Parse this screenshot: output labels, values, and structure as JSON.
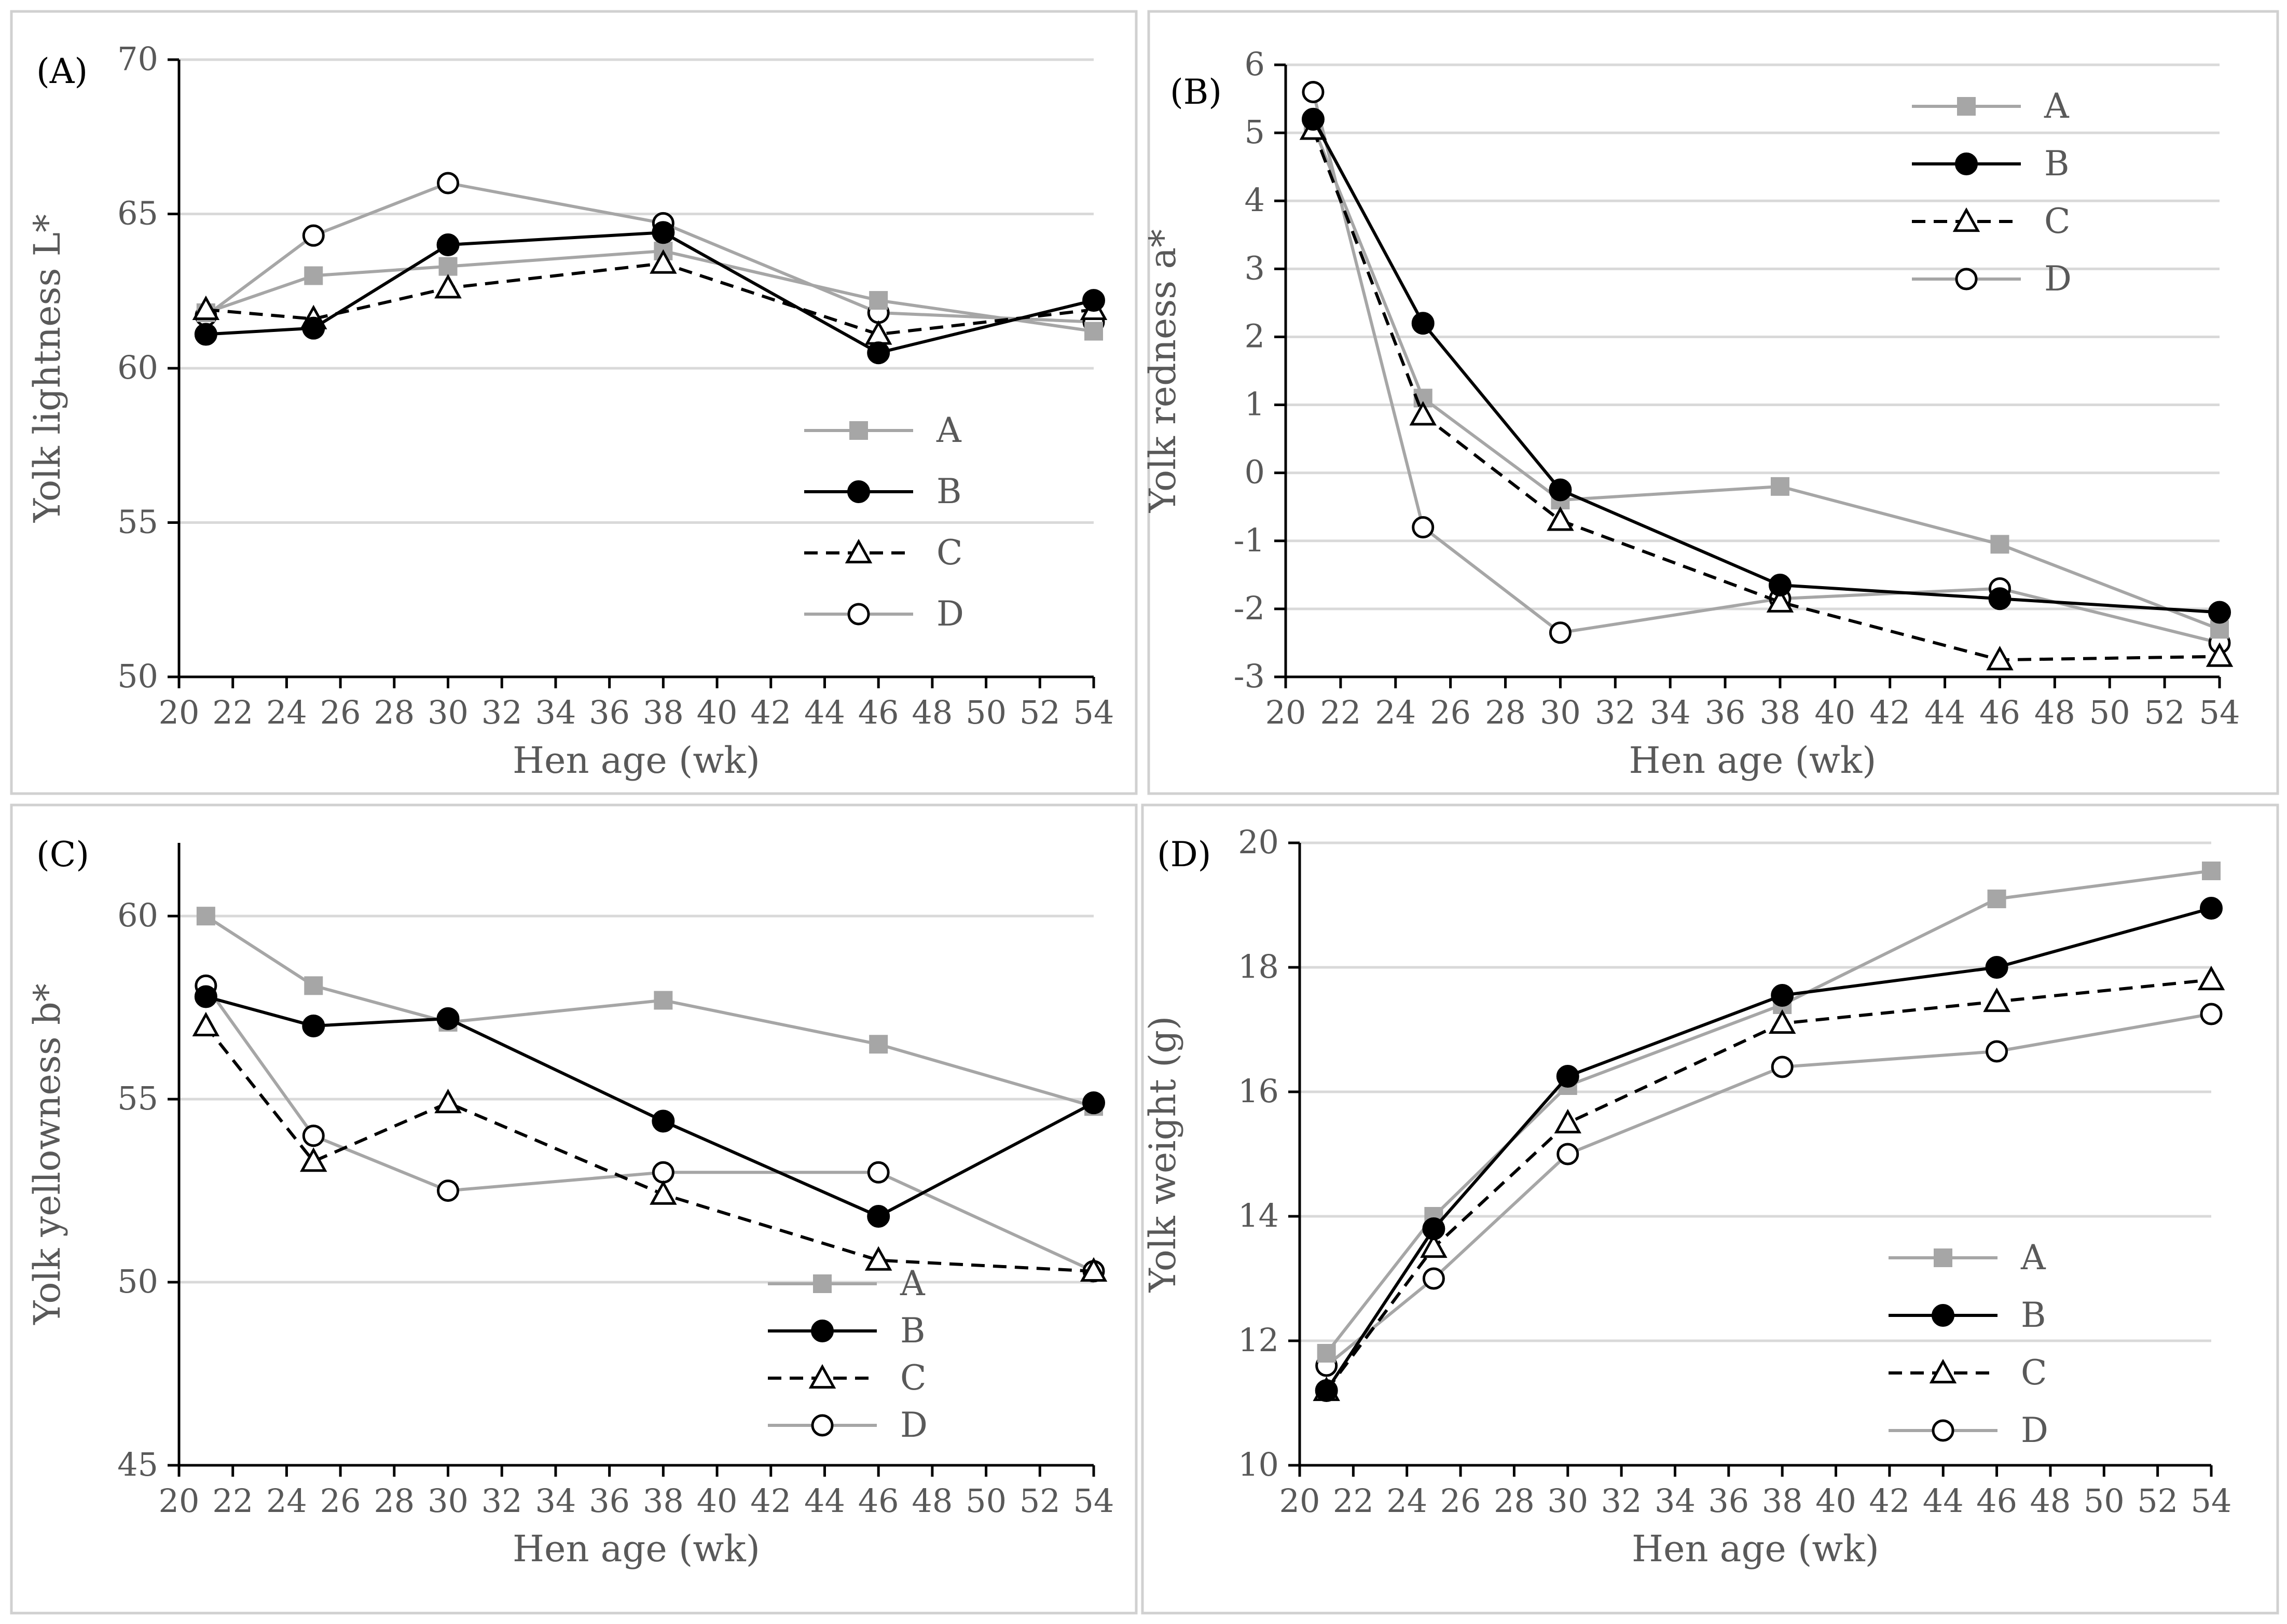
{
  "styles": {
    "A": {
      "color": "#a6a6a6",
      "marker": "square",
      "dash": "none"
    },
    "B": {
      "color": "#000000",
      "marker": "filled-circle",
      "dash": "none"
    },
    "C": {
      "color": "#000000",
      "marker": "open-triangle",
      "dash": "dashed"
    },
    "D": {
      "color": "#a6a6a6",
      "marker": "open-circle",
      "dash": "none"
    },
    "grid_color": "#d9d9d9",
    "axis_color": "#000000",
    "text_color": "#595959",
    "panel_border_color": "#d0d0d0"
  },
  "chart_data": [
    {
      "panel": "(A)",
      "type": "line",
      "ylabel": "Yolk lightness L*",
      "xlabel": "Hen age (wk)",
      "xlim": [
        20,
        54
      ],
      "ylim": [
        50,
        70
      ],
      "xticks": [
        20,
        22,
        24,
        26,
        28,
        30,
        32,
        34,
        36,
        38,
        40,
        42,
        44,
        46,
        48,
        50,
        52,
        54
      ],
      "yticks": [
        50,
        55,
        60,
        65,
        70
      ],
      "legend_position": "lower-right",
      "x": [
        21,
        25,
        30,
        38,
        46,
        54
      ],
      "series": [
        {
          "name": "A",
          "values": [
            61.8,
            63.0,
            63.3,
            63.8,
            62.2,
            61.2
          ]
        },
        {
          "name": "B",
          "values": [
            61.1,
            61.3,
            64.0,
            64.4,
            60.5,
            62.2
          ]
        },
        {
          "name": "C",
          "values": [
            61.9,
            61.6,
            62.6,
            63.4,
            61.1,
            61.9
          ]
        },
        {
          "name": "D",
          "values": [
            61.7,
            64.3,
            66.0,
            64.7,
            61.8,
            61.5
          ]
        }
      ]
    },
    {
      "panel": "(B)",
      "type": "line",
      "ylabel": "Yolk redness a*",
      "xlabel": "Hen age (wk)",
      "xlim": [
        20,
        54
      ],
      "ylim": [
        -3,
        6
      ],
      "xticks": [
        20,
        22,
        24,
        26,
        28,
        30,
        32,
        34,
        36,
        38,
        40,
        42,
        44,
        46,
        48,
        50,
        52,
        54
      ],
      "yticks": [
        -3,
        -2,
        -1,
        0,
        1,
        2,
        3,
        4,
        5,
        6
      ],
      "legend_position": "top-right",
      "x": [
        21,
        25,
        30,
        38,
        46,
        54
      ],
      "series": [
        {
          "name": "A",
          "values": [
            5.1,
            1.1,
            -0.4,
            -0.2,
            -1.05,
            -2.3
          ]
        },
        {
          "name": "B",
          "values": [
            5.2,
            2.2,
            -0.25,
            -1.65,
            -1.85,
            -2.05
          ]
        },
        {
          "name": "C",
          "values": [
            5.05,
            0.85,
            -0.7,
            -1.9,
            -2.75,
            -2.7
          ]
        },
        {
          "name": "D",
          "values": [
            5.6,
            -0.8,
            -2.35,
            -1.85,
            -1.7,
            -2.5
          ]
        }
      ]
    },
    {
      "panel": "(C)",
      "type": "line",
      "ylabel": "Yolk yellowness b*",
      "xlabel": "Hen age (wk)",
      "xlim": [
        20,
        54
      ],
      "ylim": [
        45,
        62
      ],
      "xticks": [
        20,
        22,
        24,
        26,
        28,
        30,
        32,
        34,
        36,
        38,
        40,
        42,
        44,
        46,
        48,
        50,
        52,
        54
      ],
      "yticks": [
        45,
        50,
        55,
        60
      ],
      "legend_position": "lower-right",
      "x": [
        21,
        25,
        30,
        38,
        46,
        54
      ],
      "series": [
        {
          "name": "A",
          "values": [
            60.0,
            58.1,
            57.1,
            57.7,
            56.5,
            54.8
          ]
        },
        {
          "name": "B",
          "values": [
            57.8,
            57.0,
            57.2,
            54.4,
            51.8,
            54.9
          ]
        },
        {
          "name": "C",
          "values": [
            57.0,
            53.3,
            54.9,
            52.4,
            50.6,
            50.3
          ]
        },
        {
          "name": "D",
          "values": [
            58.1,
            54.0,
            52.5,
            53.0,
            53.0,
            50.3
          ]
        }
      ]
    },
    {
      "panel": "(D)",
      "type": "line",
      "ylabel": "Yolk weight (g)",
      "xlabel": "Hen age (wk)",
      "xlim": [
        20,
        54
      ],
      "ylim": [
        10,
        20
      ],
      "xticks": [
        20,
        22,
        24,
        26,
        28,
        30,
        32,
        34,
        36,
        38,
        40,
        42,
        44,
        46,
        48,
        50,
        52,
        54
      ],
      "yticks": [
        10,
        12,
        14,
        16,
        18,
        20
      ],
      "legend_position": "lower-right",
      "x": [
        21,
        25,
        30,
        38,
        46,
        54
      ],
      "series": [
        {
          "name": "A",
          "values": [
            11.8,
            14.0,
            16.1,
            17.4,
            19.1,
            19.55
          ]
        },
        {
          "name": "B",
          "values": [
            11.2,
            13.8,
            16.25,
            17.55,
            18.0,
            18.95
          ]
        },
        {
          "name": "C",
          "values": [
            11.2,
            13.5,
            15.5,
            17.1,
            17.45,
            17.8
          ]
        },
        {
          "name": "D",
          "values": [
            11.6,
            13.0,
            15.0,
            16.4,
            16.65,
            17.25
          ]
        }
      ]
    }
  ]
}
